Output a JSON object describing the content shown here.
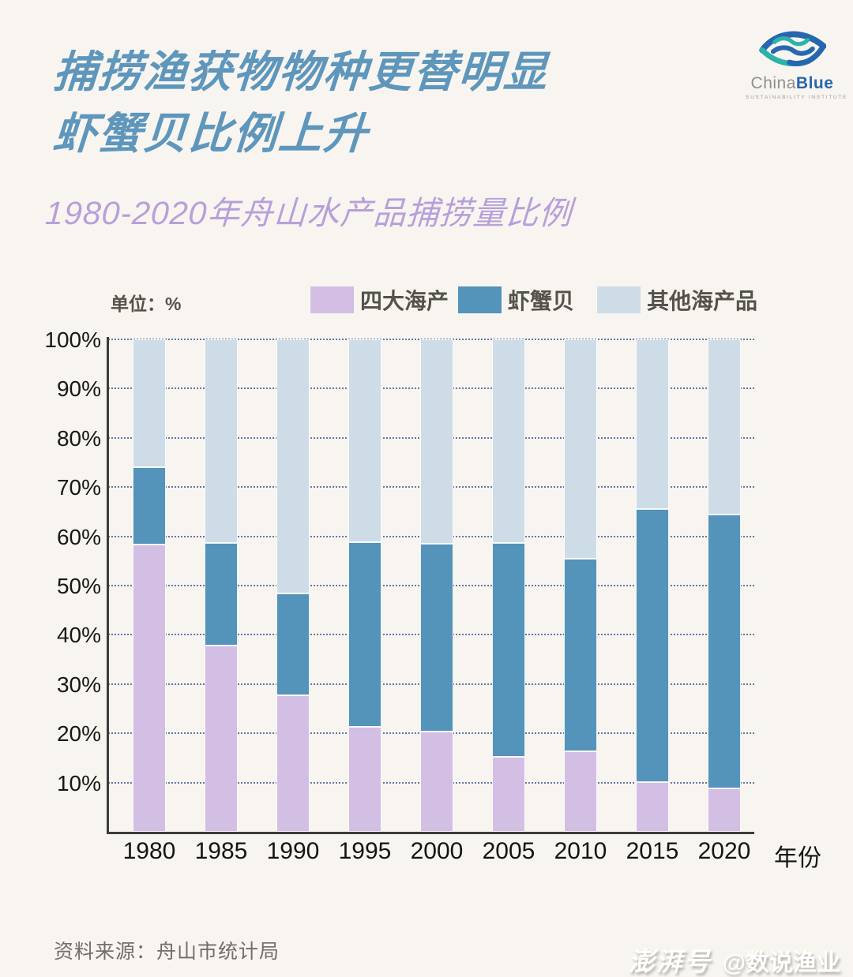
{
  "page": {
    "background": "#F8F5F0"
  },
  "header": {
    "title_line1": "捕捞渔获物物种更替明显",
    "title_line2": "虾蟹贝比例上升",
    "title_color": "#5E96BC",
    "subtitle": "1980-2020年舟山水产品捕捞量比例",
    "subtitle_color": "#B7A0DA"
  },
  "logo": {
    "brand_part1": "China",
    "brand_part2": "Blue",
    "tagline": "SUSTAINABILITY INSTITUTE",
    "brand_blue": "#2767AE",
    "brand_teal": "#2BB3AB",
    "brand_gray": "#8F8F8F"
  },
  "chart_data": {
    "type": "bar",
    "stacked": true,
    "title": "1980-2020年舟山水产品捕捞量比例",
    "unit_label": "单位：%",
    "x_axis_label": "年份",
    "categories": [
      "1980",
      "1985",
      "1990",
      "1995",
      "2000",
      "2005",
      "2010",
      "2015",
      "2020"
    ],
    "series": [
      {
        "name": "四大海产",
        "slug": "four-major-seafood",
        "color": "#D3BEE4",
        "values": [
          58.3,
          37.8,
          27.7,
          21.3,
          20.4,
          15.2,
          16.3,
          10.1,
          8.8
        ]
      },
      {
        "name": "虾蟹贝",
        "slug": "shrimp-crab-shellfish",
        "color": "#5493BA",
        "values": [
          15.8,
          20.9,
          20.7,
          37.5,
          38.1,
          43.5,
          39.1,
          55.5,
          55.7
        ]
      },
      {
        "name": "其他海产品",
        "slug": "other-seafood",
        "color": "#CEDCE7",
        "values": [
          25.9,
          41.3,
          51.6,
          41.2,
          41.5,
          41.3,
          44.6,
          34.4,
          35.5
        ]
      }
    ],
    "y_ticks": [
      100,
      90,
      80,
      70,
      60,
      50,
      40,
      30,
      20,
      10
    ],
    "y_tick_suffix": "%",
    "ylim": [
      0,
      100
    ],
    "grid": "dotted horizontal",
    "legend_position": "top"
  },
  "footer": {
    "source": "资料来源：舟山市统计局",
    "watermark_logo": "澎湃号",
    "watermark_handle": "@数说渔业"
  }
}
